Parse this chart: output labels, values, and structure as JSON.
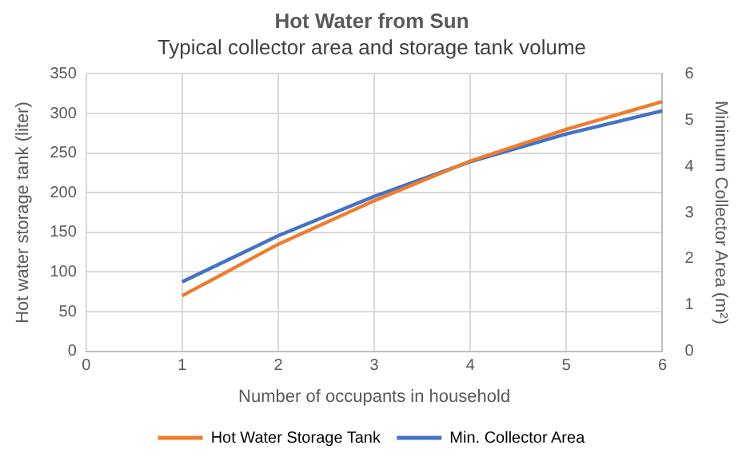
{
  "chart_data": {
    "type": "line",
    "title": "Hot Water from Sun",
    "subtitle": "Typical collector area and storage tank volume",
    "xlabel": "Number of occupants in household",
    "ylabel": "Hot water storage tank (liter)",
    "y2label": "Minimum Collector Area (m²)",
    "x": [
      1,
      2,
      3,
      4,
      5,
      6
    ],
    "series": [
      {
        "name": "Hot Water Storage Tank",
        "color": "#ed7d31",
        "values": [
          70,
          135,
          190,
          240,
          280,
          315
        ]
      },
      {
        "name": "Min. Collector Area",
        "color": "#4472c4",
        "axis": "y2",
        "values": [
          1.5,
          2.5,
          3.35,
          4.1,
          4.7,
          5.2
        ]
      }
    ],
    "xlim": [
      0,
      6
    ],
    "xticks": [
      0,
      1,
      2,
      3,
      4,
      5,
      6
    ],
    "ylim": [
      0,
      350
    ],
    "yticks": [
      0,
      50,
      100,
      150,
      200,
      250,
      300,
      350
    ],
    "y2lim": [
      0,
      6
    ],
    "y2ticks": [
      0,
      1,
      2,
      3,
      4,
      5,
      6
    ],
    "grid": true,
    "legend": "bottom",
    "marker": "none",
    "line_style": "solid"
  }
}
